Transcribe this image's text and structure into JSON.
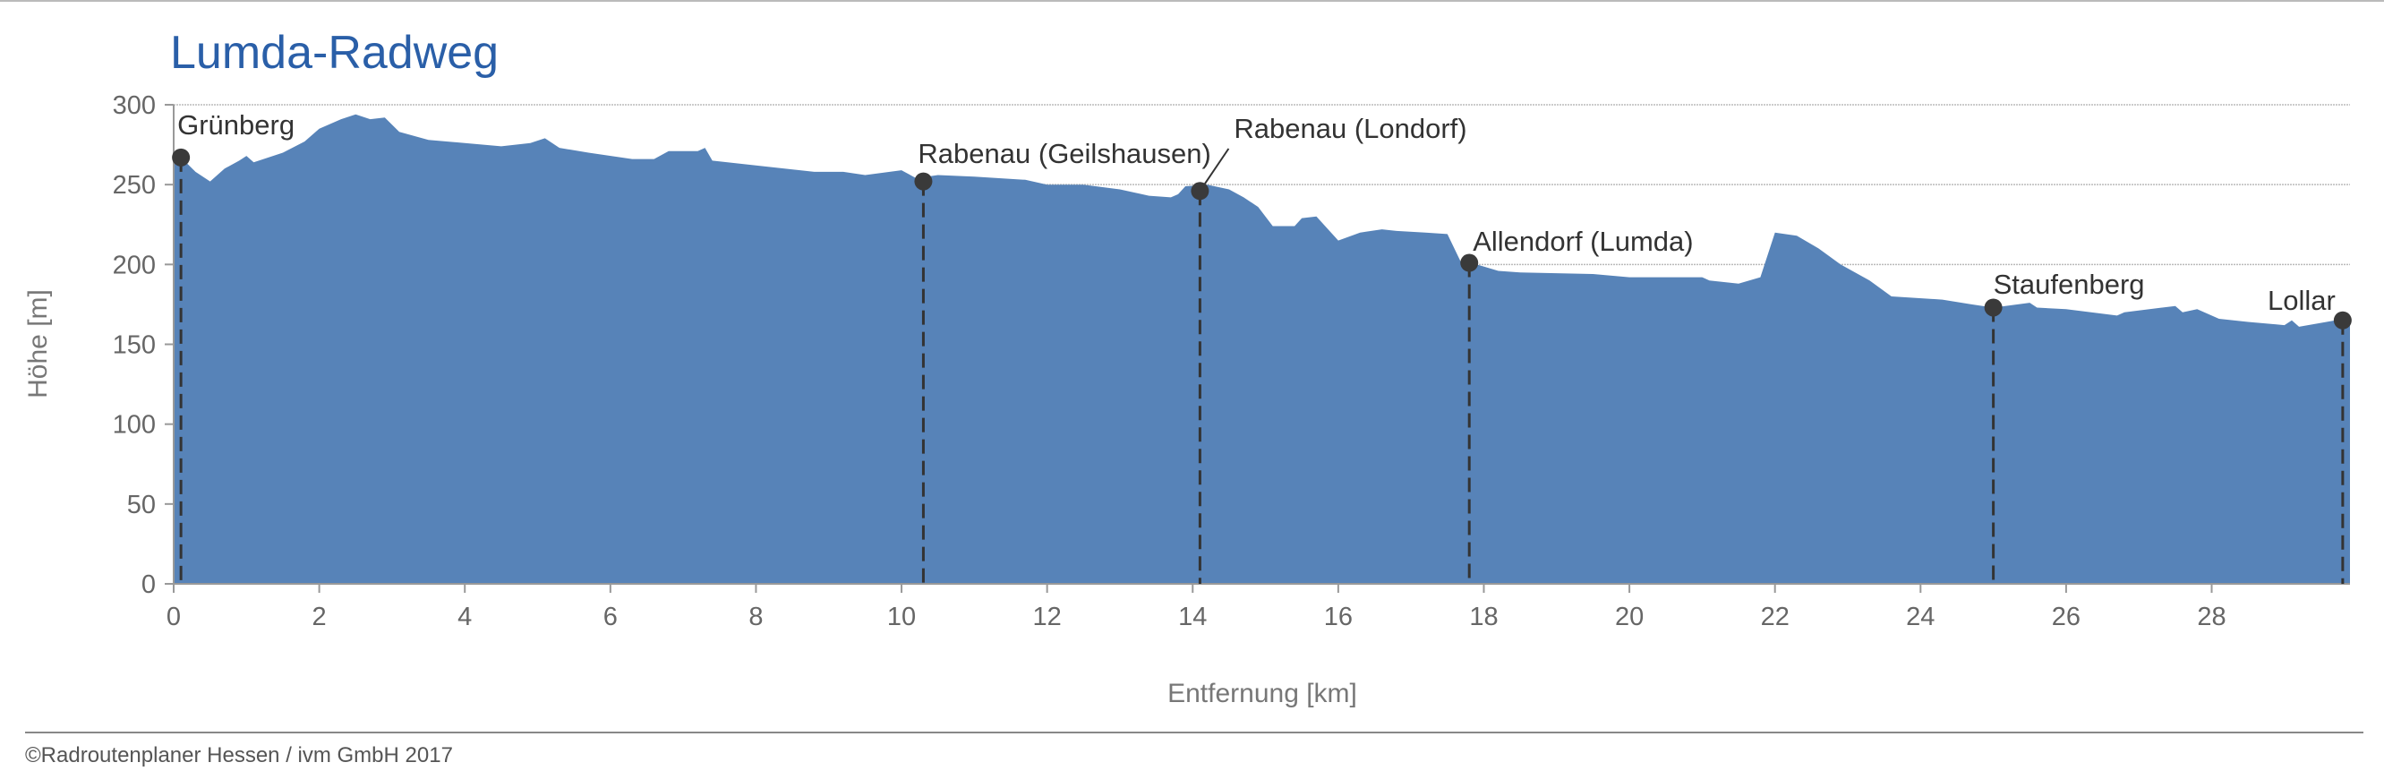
{
  "chart_data": {
    "type": "area",
    "title": "Lumda-Radweg",
    "xlabel": "Entfernung [km]",
    "ylabel": "Höhe [m]",
    "xlim": [
      0,
      29.9
    ],
    "ylim": [
      0,
      300
    ],
    "xticks": [
      0,
      2,
      4,
      6,
      8,
      10,
      12,
      14,
      16,
      18,
      20,
      22,
      24,
      26,
      28
    ],
    "yticks": [
      0,
      50,
      100,
      150,
      200,
      250,
      300
    ],
    "grid": "horizontal",
    "fill_color": "#5783b8",
    "marker_color": "#3a3a3a",
    "x": [
      0,
      0.1,
      0.3,
      0.5,
      0.7,
      0.9,
      1.0,
      1.1,
      1.5,
      1.8,
      2.0,
      2.3,
      2.5,
      2.7,
      2.9,
      3.1,
      3.5,
      4.0,
      4.5,
      4.9,
      5.1,
      5.3,
      5.7,
      6.3,
      6.6,
      6.8,
      7.2,
      7.3,
      7.4,
      8.0,
      8.8,
      9.2,
      9.5,
      10.0,
      10.2,
      10.5,
      11.0,
      11.7,
      12.0,
      12.5,
      13.0,
      13.4,
      13.7,
      13.8,
      13.9,
      14.2,
      14.5,
      14.7,
      14.9,
      15.1,
      15.4,
      15.5,
      15.7,
      16.0,
      16.3,
      16.6,
      16.8,
      17.2,
      17.5,
      17.7,
      17.9,
      18.2,
      18.5,
      19.5,
      20.0,
      21.0,
      21.1,
      21.5,
      21.8,
      22.0,
      22.3,
      22.6,
      22.9,
      23.3,
      23.6,
      24.3,
      24.7,
      25.0,
      25.5,
      25.6,
      26.0,
      26.7,
      26.8,
      27.5,
      27.6,
      27.8,
      28.1,
      28.5,
      29.0,
      29.1,
      29.2,
      29.7,
      29.9
    ],
    "y": [
      268,
      267,
      258,
      252,
      260,
      265,
      268,
      264,
      270,
      277,
      285,
      291,
      294,
      291,
      292,
      283,
      278,
      276,
      274,
      276,
      279,
      273,
      270,
      266,
      266,
      271,
      271,
      273,
      265,
      262,
      258,
      258,
      256,
      259,
      254,
      256,
      255,
      253,
      250,
      250,
      247,
      243,
      242,
      244,
      249,
      250,
      247,
      242,
      236,
      224,
      224,
      229,
      230,
      215,
      220,
      222,
      221,
      220,
      219,
      200,
      200,
      196,
      195,
      194,
      192,
      192,
      190,
      188,
      192,
      220,
      218,
      210,
      200,
      190,
      180,
      178,
      175,
      173,
      176,
      173,
      172,
      168,
      170,
      174,
      170,
      172,
      166,
      164,
      162,
      165,
      161,
      165,
      165
    ],
    "annotations": [
      {
        "label": "Grünberg",
        "x": 0.1,
        "y": 267
      },
      {
        "label": "Rabenau (Geilshausen)",
        "x": 10.3,
        "y": 252
      },
      {
        "label": "Rabenau (Londorf)",
        "x": 14.1,
        "y": 246
      },
      {
        "label": "Allendorf (Lumda)",
        "x": 17.8,
        "y": 201
      },
      {
        "label": "Staufenberg",
        "x": 25.0,
        "y": 173
      },
      {
        "label": "Lollar",
        "x": 29.8,
        "y": 165
      }
    ]
  },
  "footer": {
    "copyright": "©Radroutenplaner Hessen / ivm GmbH 2017"
  }
}
